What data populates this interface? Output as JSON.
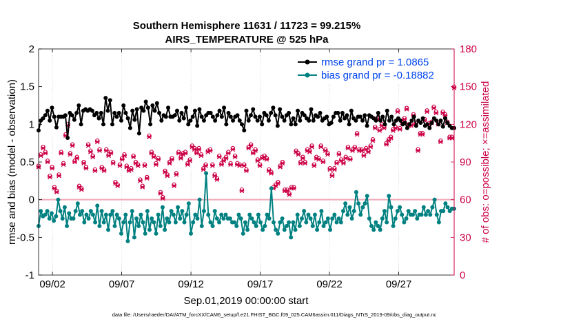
{
  "chart_data": {
    "type": "line",
    "title_line1": "Southern Hemisphere 11631 / 11723 = 99.215%",
    "title_line2": "AIRS_TEMPERATURE @ 525 hPa",
    "xlabel": "Sep.01,2019 00:00:00 start",
    "ylabel_left": "rmse and bias (model - observation)",
    "ylabel_right": "# of obs: o=possible; ×=assimilated",
    "footnote": "data file: /Users/raeder/DAI/ATM_forcXX/CAM6_setup/f.e21.FHIST_BGC.f09_025.CAM6assim.011/Diags_NTrS_2019-09/obs_diag_output.nc",
    "xlim": [
      0,
      30
    ],
    "ylim_left": [
      -1,
      2
    ],
    "ylim_right": [
      0,
      180
    ],
    "left_ticks": [
      "-1",
      "-0.5",
      "0",
      "0.5",
      "1",
      "1.5",
      "2"
    ],
    "right_ticks": [
      "0",
      "30",
      "60",
      "90",
      "120",
      "150",
      "180"
    ],
    "x_ticks": [
      {
        "day": 1,
        "label": "09/02"
      },
      {
        "day": 6,
        "label": "09/07"
      },
      {
        "day": 11,
        "label": "09/12"
      },
      {
        "day": 16,
        "label": "09/17"
      },
      {
        "day": 21,
        "label": "09/22"
      },
      {
        "day": 26,
        "label": "09/27"
      }
    ],
    "legend": [
      {
        "name": "rmse grand pr = 1.0865",
        "color": "#000000"
      },
      {
        "name": "bias grand pr = -0.18882",
        "color": "#008080"
      }
    ],
    "series": [
      {
        "name": "rmse",
        "color": "#000000",
        "values": [
          0.92,
          1.05,
          1.08,
          1.12,
          1.18,
          1.05,
          1.22,
          1.1,
          0.96,
          1.1,
          1.1,
          1.1,
          1.12,
          0.82,
          1.15,
          1.12,
          1.06,
          1.15,
          1.25,
          1.0,
          1.18,
          1.2,
          1.18,
          1.2,
          1.18,
          1.12,
          1.15,
          1.08,
          1.15,
          1.0,
          1.35,
          1.18,
          1.32,
          1.0,
          1.15,
          1.1,
          1.15,
          1.05,
          1.25,
          1.15,
          1.08,
          0.95,
          1.18,
          1.06,
          1.2,
          0.88,
          1.22,
          1.18,
          1.3,
          1.22,
          1.0,
          1.25,
          1.18,
          1.28,
          1.15,
          1.05,
          1.12,
          1.1,
          1.22,
          1.1,
          1.1,
          1.12,
          1.18,
          1.05,
          1.15,
          1.08,
          1.22,
          1.0,
          1.05,
          1.1,
          1.18,
          0.98,
          1.2,
          1.1,
          1.05,
          1.12,
          1.15,
          1.15,
          1.1,
          1.05,
          1.12,
          1.18,
          1.1,
          1.22,
          1.0,
          1.15,
          1.1,
          1.05,
          1.1,
          1.12,
          1.05,
          1.0,
          0.92,
          1.18,
          1.05,
          1.12,
          1.2,
          1.1,
          1.05,
          1.1,
          1.0,
          1.15,
          1.12,
          1.05,
          1.15,
          1.22,
          1.12,
          0.98,
          1.2,
          1.1,
          1.05,
          1.12,
          1.15,
          1.0,
          1.08,
          1.0,
          1.18,
          1.05,
          1.15,
          1.12,
          1.08,
          1.05,
          1.2,
          1.05,
          1.12,
          1.1,
          1.15,
          1.05,
          1.08,
          1.1,
          1.0,
          1.02,
          1.1,
          1.15,
          1.15,
          1.05,
          1.15,
          1.08,
          1.12,
          1.0,
          1.18,
          1.08,
          1.05,
          1.1,
          1.1,
          1.05,
          1.12,
          0.98,
          1.12,
          1.1,
          1.08,
          1.05,
          1.15,
          1.05,
          1.1,
          1.0,
          1.18,
          1.05,
          1.1,
          1.0,
          1.05,
          1.08,
          1.05,
          1.0,
          1.02,
          0.95,
          1.0,
          1.05,
          1.1,
          0.98,
          1.05,
          1.02,
          1.08,
          0.98,
          1.0,
          0.95,
          1.02,
          1.08,
          1.05,
          1.0,
          1.05,
          0.97,
          1.08,
          1.02,
          0.98,
          0.95,
          0.95
        ]
      },
      {
        "name": "bias",
        "color": "#008080",
        "values": [
          -0.35,
          -0.15,
          -0.22,
          -0.2,
          -0.15,
          -0.25,
          -0.18,
          -0.28,
          -0.22,
          0.0,
          -0.15,
          -0.25,
          -0.1,
          -0.35,
          -0.18,
          -0.25,
          -0.25,
          -0.15,
          -0.05,
          -0.2,
          -0.15,
          -0.3,
          -0.2,
          -0.25,
          -0.15,
          -0.2,
          -0.3,
          -0.08,
          -0.35,
          -0.15,
          -0.3,
          -0.2,
          -0.4,
          -0.2,
          -0.15,
          -0.35,
          -0.2,
          -0.25,
          -0.45,
          -0.3,
          -0.2,
          -0.55,
          -0.3,
          -0.15,
          -0.5,
          -0.25,
          -0.35,
          -0.2,
          -0.3,
          -0.45,
          -0.15,
          -0.4,
          -0.25,
          -0.3,
          -0.45,
          -0.2,
          -0.35,
          -0.1,
          -0.4,
          -0.25,
          -0.3,
          -0.15,
          -0.2,
          -0.3,
          -0.1,
          -0.25,
          -0.15,
          -0.3,
          -0.2,
          -0.05,
          -0.45,
          -0.3,
          -0.2,
          -0.25,
          0.0,
          -0.35,
          -0.15,
          0.35,
          -0.2,
          -0.3,
          -0.35,
          -0.15,
          -0.25,
          -0.3,
          -0.2,
          -0.25,
          -0.2,
          -0.25,
          -0.25,
          -0.3,
          -0.3,
          -0.35,
          -0.2,
          -0.25,
          -0.45,
          -0.3,
          -0.4,
          -0.2,
          -0.25,
          -0.3,
          -0.35,
          -0.2,
          -0.3,
          -0.4,
          -0.35,
          -0.2,
          -0.25,
          0.15,
          -0.3,
          -0.4,
          -0.45,
          -0.3,
          -0.25,
          -0.4,
          -0.35,
          -0.3,
          -0.5,
          -0.3,
          -0.4,
          -0.2,
          -0.35,
          -0.25,
          -0.15,
          -0.3,
          -0.2,
          -0.25,
          -0.35,
          -0.2,
          -0.4,
          -0.3,
          -0.15,
          -0.35,
          -0.3,
          -0.25,
          -0.4,
          -0.25,
          -0.2,
          -0.3,
          -0.25,
          -0.3,
          -0.15,
          -0.05,
          -0.2,
          -0.1,
          -0.25,
          -0.15,
          0.1,
          -0.05,
          -0.2,
          -0.1,
          -0.05,
          0.05,
          -0.25,
          -0.35,
          -0.4,
          -0.3,
          -0.35,
          -0.4,
          -0.25,
          -0.15,
          -0.3,
          0.05,
          -0.1,
          -0.35,
          -0.25,
          -0.15,
          -0.1,
          -0.2,
          -0.3,
          -0.25,
          -0.15,
          -0.2,
          -0.2,
          -0.15,
          -0.25,
          -0.2,
          -0.2,
          -0.1,
          -0.2,
          -0.15,
          -0.2,
          -0.1,
          0.0,
          -0.2,
          -0.3,
          -0.15,
          -0.15,
          -0.05,
          -0.1,
          -0.15,
          -0.12,
          -0.12
        ]
      },
      {
        "name": "obs_possible",
        "marker": "o",
        "color": "#cc0044",
        "values": [
          87,
          96,
          102,
          98,
          91,
          79,
          86,
          70,
          67,
          80,
          98,
          89,
          112,
          120,
          97,
          104,
          91,
          94,
          71,
          69,
          90,
          86,
          104,
          99,
          95,
          84,
          107,
          100,
          86,
          84,
          100,
          96,
          98,
          90,
          74,
          72,
          88,
          93,
          96,
          87,
          84,
          85,
          95,
          90,
          88,
          76,
          71,
          88,
          78,
          111,
          98,
          95,
          89,
          93,
          66,
          62,
          83,
          80,
          90,
          93,
          72,
          81,
          98,
          94,
          97,
          98,
          89,
          92,
          103,
          101,
          98,
          101,
          96,
          85,
          88,
          99,
          100,
          88,
          80,
          77,
          95,
          89,
          92,
          94,
          98,
          89,
          101,
          95,
          89,
          88,
          68,
          88,
          84,
          102,
          104,
          98,
          100,
          92,
          88,
          94,
          95,
          93,
          84,
          82,
          70,
          72,
          74,
          87,
          90,
          68,
          68,
          65,
          70,
          70,
          99,
          97,
          90,
          94,
          90,
          100,
          99,
          103,
          88,
          94,
          93,
          103,
          91,
          100,
          97,
          85,
          80,
          85,
          90,
          97,
          92,
          90,
          94,
          102,
          93,
          100,
          102,
          113,
          100,
          100,
          96,
          101,
          99,
          103,
          108,
          118,
          125,
          116,
          120,
          118,
          105,
          108,
          110,
          116,
          118,
          131,
          117,
          122,
          125,
          133,
          120,
          120,
          128,
          121,
          100,
          113,
          113,
          124,
          131,
          121,
          122,
          134,
          130,
          121,
          107,
          130,
          128,
          122,
          110,
          110,
          150
        ]
      },
      {
        "name": "obs_assimilated",
        "marker": "x",
        "color": "#cc0044",
        "values": [
          86,
          95,
          101,
          97,
          90,
          78,
          85,
          69,
          66,
          79,
          97,
          88,
          111,
          119,
          96,
          103,
          90,
          93,
          70,
          68,
          89,
          85,
          103,
          98,
          94,
          83,
          106,
          99,
          85,
          83,
          99,
          95,
          97,
          89,
          73,
          71,
          87,
          92,
          95,
          86,
          83,
          84,
          94,
          89,
          87,
          75,
          70,
          87,
          77,
          110,
          97,
          94,
          88,
          92,
          65,
          61,
          82,
          79,
          89,
          92,
          71,
          80,
          97,
          93,
          96,
          97,
          88,
          91,
          102,
          100,
          97,
          100,
          95,
          84,
          87,
          98,
          99,
          87,
          79,
          76,
          94,
          88,
          91,
          93,
          97,
          88,
          100,
          94,
          88,
          87,
          67,
          87,
          83,
          101,
          103,
          97,
          99,
          91,
          87,
          93,
          94,
          92,
          83,
          81,
          69,
          71,
          73,
          86,
          89,
          67,
          67,
          64,
          69,
          69,
          98,
          96,
          89,
          93,
          89,
          99,
          98,
          102,
          87,
          93,
          92,
          102,
          90,
          99,
          96,
          84,
          79,
          84,
          89,
          96,
          91,
          89,
          93,
          101,
          92,
          99,
          101,
          112,
          99,
          99,
          95,
          100,
          98,
          102,
          107,
          117,
          124,
          115,
          119,
          117,
          104,
          107,
          109,
          115,
          117,
          130,
          116,
          121,
          124,
          132,
          119,
          119,
          127,
          120,
          99,
          112,
          112,
          123,
          130,
          120,
          121,
          133,
          129,
          120,
          106,
          129,
          127,
          121,
          109,
          109,
          149
        ]
      }
    ]
  }
}
